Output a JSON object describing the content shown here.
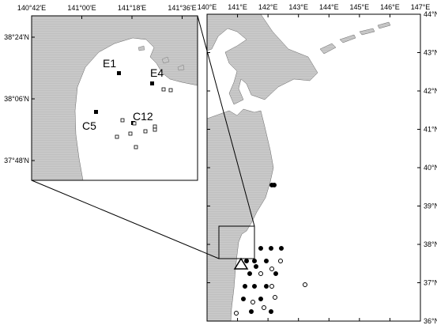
{
  "main_map": {
    "x_labels": [
      "140°E",
      "141°E",
      "142°E",
      "143°E",
      "144°E",
      "145°E",
      "146°E",
      "147°E"
    ],
    "y_labels": [
      "44°N",
      "43°N",
      "42°N",
      "41°N",
      "40°N",
      "39°N",
      "38°N",
      "37°N",
      "36°N"
    ]
  },
  "inset": {
    "x_labels": [
      "140°42'E",
      "141°00'E",
      "141°18'E",
      "141°36'E"
    ],
    "y_labels": [
      "38°24'N",
      "38°06'N",
      "37°48'N"
    ],
    "stations": [
      "E1",
      "E4",
      "C5",
      "C12"
    ]
  }
}
